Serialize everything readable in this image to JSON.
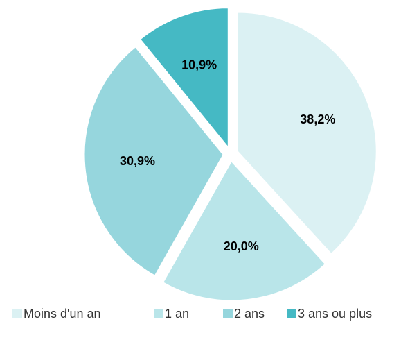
{
  "chart_data": {
    "type": "pie",
    "categories": [
      "Moins d'un an",
      "1 an",
      "2 ans",
      "3 ans ou plus"
    ],
    "values": [
      38.2,
      20.0,
      30.9,
      10.9
    ],
    "value_labels": [
      "38,2%",
      "20,0%",
      "30,9%",
      "10,9%"
    ],
    "colors": [
      "#dbf1f3",
      "#b9e5e9",
      "#96d6dd",
      "#45b9c4"
    ],
    "legend": "bottom"
  }
}
